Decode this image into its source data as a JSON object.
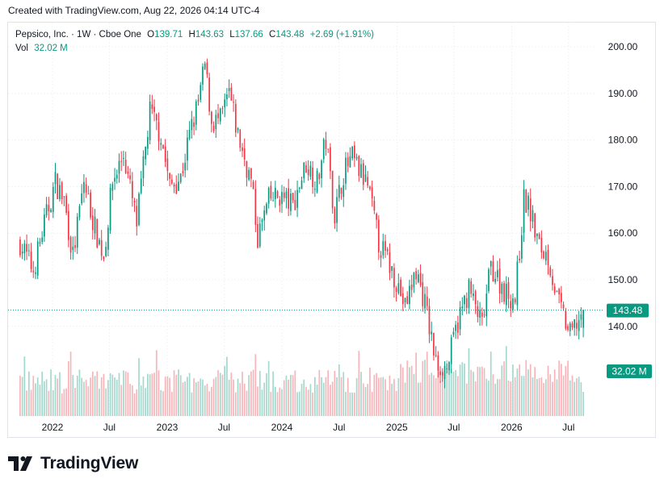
{
  "header": {
    "created": "Created with TradingView.com, Aug 22, 2026 04:14 UTC-4"
  },
  "legend": {
    "symbol": "Pepsico, Inc. · 1W · Cboe One",
    "o_label": "O",
    "o_value": "139.71",
    "h_label": "H",
    "h_value": "143.63",
    "l_label": "L",
    "l_value": "137.66",
    "c_label": "C",
    "c_value": "143.48",
    "change": "+2.69 (+1.91%)",
    "vol_label": "Vol",
    "vol_value": "32.02 M"
  },
  "colors": {
    "up": "#089981",
    "down": "#f23645",
    "up_vol": "#a5d8cc",
    "down_vol": "#f7b4b9",
    "grid": "#f0f3fa",
    "last_dotted": "#089981"
  },
  "branding": {
    "name": "TradingView",
    "logo_icon": "tradingview-logo-icon"
  },
  "chart_data": {
    "type": "candlestick",
    "symbol": "Pepsico, Inc.",
    "interval": "1W",
    "exchange": "Cboe One",
    "ylim": [
      131,
      204
    ],
    "y_ticks": [
      "200.00",
      "190.00",
      "180.00",
      "170.00",
      "160.00",
      "150.00",
      "140.00"
    ],
    "x_ticks": [
      "2022",
      "Jul",
      "2023",
      "Jul",
      "2024",
      "Jul",
      "2025",
      "Jul",
      "2026",
      "Jul"
    ],
    "last_price": "143.48",
    "last_volume": "32.02 M",
    "grid": true,
    "close_path": [
      [
        "2021-09-20",
        158
      ],
      [
        "2021-11-01",
        152
      ],
      [
        "2021-12-06",
        162
      ],
      [
        "2022-01-10",
        171
      ],
      [
        "2022-02-07",
        167
      ],
      [
        "2022-03-07",
        155
      ],
      [
        "2022-04-11",
        171
      ],
      [
        "2022-05-16",
        161
      ],
      [
        "2022-06-13",
        155
      ],
      [
        "2022-07-11",
        171
      ],
      [
        "2022-08-15",
        177
      ],
      [
        "2022-09-26",
        162
      ],
      [
        "2022-11-07",
        186
      ],
      [
        "2022-12-12",
        181
      ],
      [
        "2023-01-09",
        170
      ],
      [
        "2023-02-13",
        172
      ],
      [
        "2023-03-13",
        181
      ],
      [
        "2023-04-10",
        188
      ],
      [
        "2023-05-01",
        196
      ],
      [
        "2023-05-22",
        184
      ],
      [
        "2023-06-19",
        184
      ],
      [
        "2023-07-17",
        190
      ],
      [
        "2023-08-14",
        181
      ],
      [
        "2023-09-25",
        171
      ],
      [
        "2023-10-16",
        159
      ],
      [
        "2023-11-20",
        167
      ],
      [
        "2023-12-25",
        168
      ],
      [
        "2024-02-05",
        166
      ],
      [
        "2024-03-18",
        175
      ],
      [
        "2024-04-22",
        171
      ],
      [
        "2024-05-20",
        180
      ],
      [
        "2024-06-17",
        164
      ],
      [
        "2024-07-15",
        173
      ],
      [
        "2024-08-12",
        176
      ],
      [
        "2024-09-30",
        170
      ],
      [
        "2024-11-04",
        158
      ],
      [
        "2024-12-30",
        150
      ],
      [
        "2025-01-27",
        144
      ],
      [
        "2025-03-03",
        152
      ],
      [
        "2025-03-31",
        145
      ],
      [
        "2025-05-05",
        132
      ],
      [
        "2025-06-09",
        131
      ],
      [
        "2025-07-14",
        141
      ],
      [
        "2025-08-18",
        148
      ],
      [
        "2025-09-29",
        140
      ],
      [
        "2025-10-27",
        153
      ],
      [
        "2025-12-15",
        147
      ],
      [
        "2026-01-12",
        146
      ],
      [
        "2026-02-09",
        167
      ],
      [
        "2026-02-23",
        166
      ],
      [
        "2026-03-30",
        157
      ],
      [
        "2026-04-27",
        155
      ],
      [
        "2026-05-25",
        146
      ],
      [
        "2026-07-06",
        138
      ],
      [
        "2026-08-17",
        143.48
      ]
    ]
  }
}
